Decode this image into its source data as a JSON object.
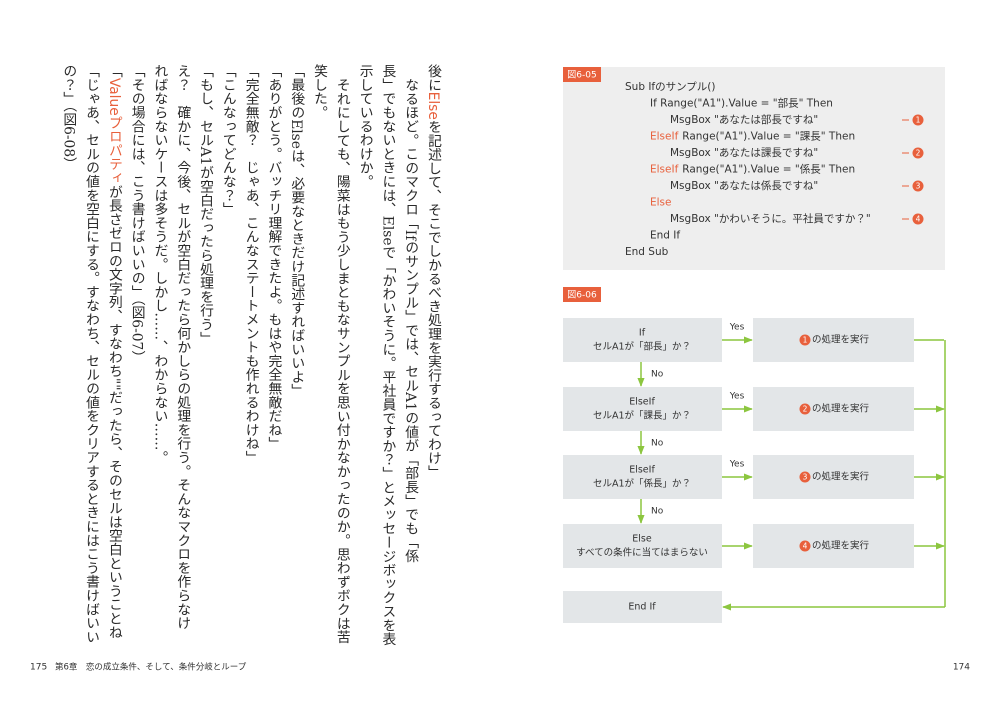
{
  "left_page": {
    "columns": [
      [
        "後に",
        "Else",
        "を記述して、そこでしかるべき処理を実行するってわけ」"
      ],
      "なるほど。このマクロ「Ifのサンプル」では、セルA1の値が「部長」でも「係",
      "長」でもないときには、Elseで「かわいそうに。平社員ですか？」とメッセージボックスを表",
      "示しているわけか。",
      "それにしても、陽菜はもう少しまともなサンプルを思い付かなかったのか。思わずボクは苦",
      "笑した。",
      "「最後のElseは、必要なときだけ記述すればいいよ」",
      "「ありがとう。バッチリ理解できたよ。もはや完全無敵だね」",
      "「完全無敵？　じゃあ、こんなステートメントも作れるわけね」",
      "「こんなってどんな？」",
      "「もし、セルA1が空白だったら処理を行う」",
      "え？　確かに、今後、セルが空白だったら何かしらの処理を行う。そんなマクロを作らなけ",
      "ればならないケースは多そうだ。しかし……、わからない……。",
      "「その場合には、こう書けばいいの」（図6-07）",
      [
        "「",
        "Valueプロパティ",
        "が長さゼロの文字列、すなわち\"\"だったら、そのセルは空白ということね"
      ],
      "「じゃあ、セルの値を空白にする。すなわち、セルの値をクリアするときにはこう書けばいい",
      "の？」（図6-08）"
    ],
    "page_number": "175",
    "chapter": "第6章　恋の成立条件、そして、条件分岐とループ"
  },
  "right_page": {
    "page_number": "174",
    "figure_05": {
      "label": "図6-05",
      "lines": [
        {
          "text": "Sub Ifのサンプル()"
        },
        {
          "text": "If Range(\"A1\").Value = \"部長\" Then"
        },
        {
          "text": "MsgBox \"あなたは部長ですね\"",
          "marker": "1"
        },
        {
          "keyword": "ElseIf",
          "text": "Range(\"A1\").Value = \"課長\" Then"
        },
        {
          "text": "MsgBox \"あなたは課長ですね\"",
          "marker": "2"
        },
        {
          "keyword": "ElseIf",
          "text": "Range(\"A1\").Value = \"係長\" Then"
        },
        {
          "text": "MsgBox \"あなたは係長ですね\"",
          "marker": "3"
        },
        {
          "keyword": "Else"
        },
        {
          "text": "MsgBox \"かわいそうに。平社員ですか？\"",
          "marker": "4"
        },
        {
          "text": "End If"
        },
        {
          "text": "End Sub"
        }
      ]
    },
    "figure_06": {
      "label": "図6-06",
      "decisions": [
        [
          "If",
          "セルA1が「部長」か？"
        ],
        [
          "ElseIf",
          "セルA1が「課長」か？"
        ],
        [
          "ElseIf",
          "セルA1が「係長」か？"
        ],
        [
          "Else",
          "すべての条件に当てはまらない"
        ]
      ],
      "actions": [
        {
          "marker": "1",
          "text": "の処理を実行"
        },
        {
          "marker": "2",
          "text": "の処理を実行"
        },
        {
          "marker": "3",
          "text": "の処理を実行"
        },
        {
          "marker": "4",
          "text": "の処理を実行"
        }
      ],
      "yes_labels": [
        "Yes",
        "Yes",
        "Yes"
      ],
      "no_labels": [
        "No",
        "No",
        "No"
      ],
      "end": "End If"
    }
  }
}
